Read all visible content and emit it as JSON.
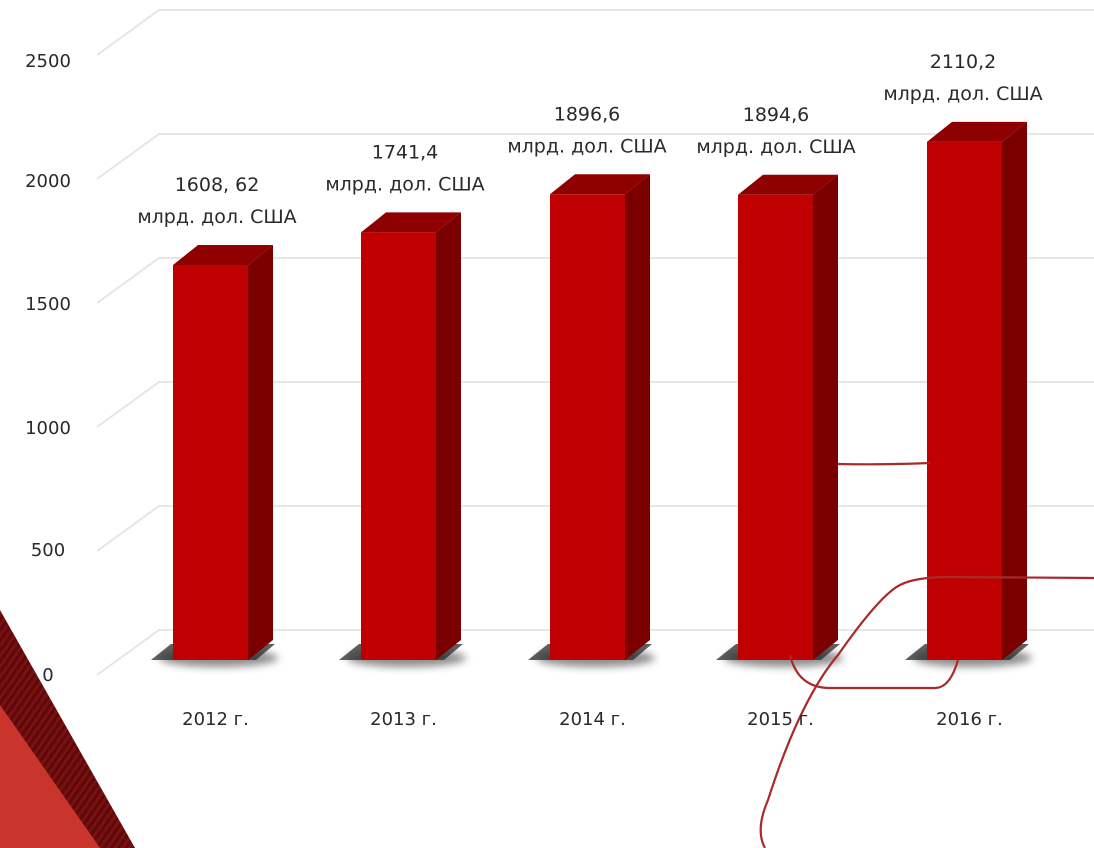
{
  "chart_data": {
    "type": "bar",
    "categories": [
      "2012 г.",
      "2013 г.",
      "2014 г.",
      "2015 г.",
      "2016 г."
    ],
    "values": [
      1608.62,
      1741.4,
      1896.6,
      1894.6,
      2110.2
    ],
    "value_labels": [
      "1608, 62",
      "1741,4",
      "1896,6",
      "1894,6",
      "2110,2"
    ],
    "value_unit": "млрд. дол. США",
    "y_ticks": [
      "0",
      "500",
      "1000",
      "1500",
      "2000",
      "2500"
    ],
    "ylim": [
      0,
      2500
    ],
    "title": "",
    "xlabel": "",
    "ylabel": "",
    "grid": true,
    "style": "3d",
    "colors": {
      "bar_front": "#c00000",
      "bar_side": "#7a0000",
      "bar_top": "#8f0000",
      "grid": "#e6e6e6",
      "decor_dark": "#6b0e0e",
      "decor_mid": "#b02020",
      "decor_light": "#d03a32",
      "decor_line": "#a82a2a"
    }
  }
}
